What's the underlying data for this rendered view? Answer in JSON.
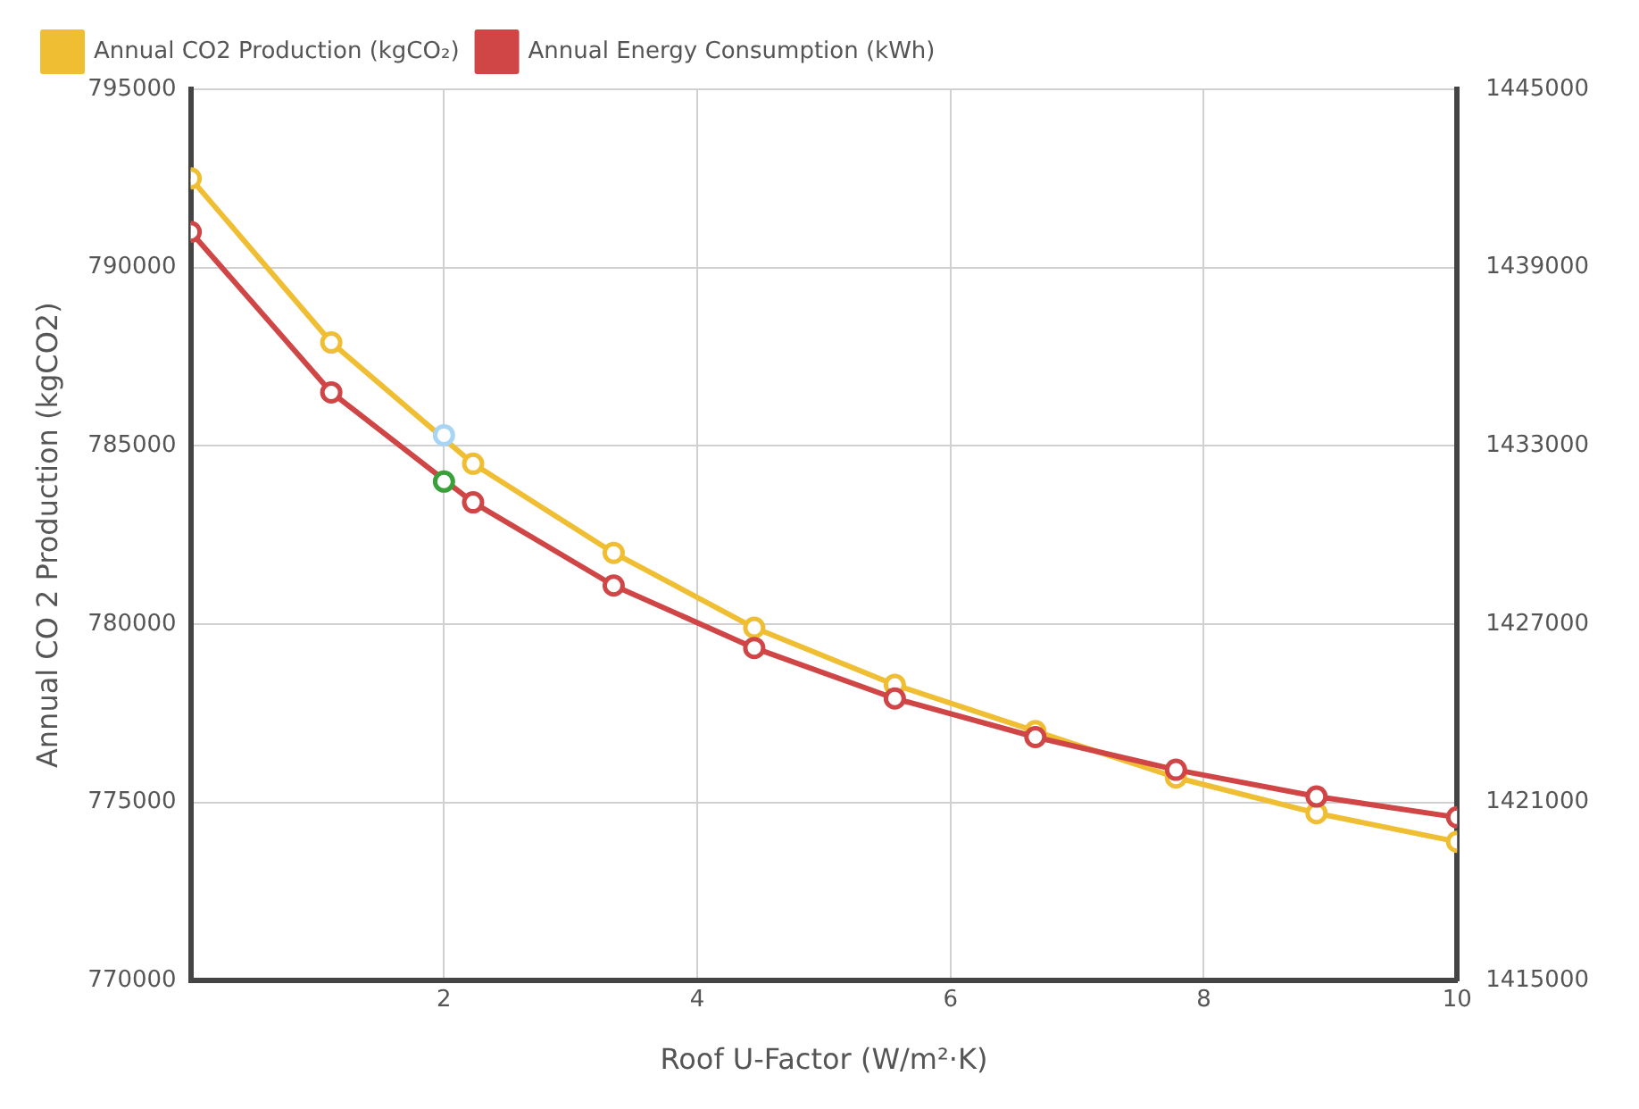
{
  "chart_data": {
    "type": "line",
    "xlabel": "Roof U-Factor (W/m²·K)",
    "ylabel": "Annual CO 2 Production (kgCO2)",
    "x": [
      0,
      1.11,
      2.23,
      3.34,
      4.45,
      5.56,
      6.67,
      7.78,
      8.89,
      10
    ],
    "series": [
      {
        "name": "Annual CO2 Production (kgCO₂)",
        "color": "#f0be32",
        "values": [
          792500,
          787900,
          784500,
          782000,
          779900,
          778300,
          777000,
          775700,
          774700,
          773900
        ]
      },
      {
        "name": "Annual Energy Consumption (kWh)",
        "color": "#d04545",
        "axis": "y2",
        "values": [
          1440200,
          1434800,
          1431100,
          1428300,
          1426200,
          1424500,
          1423200,
          1422100,
          1421200,
          1420500
        ]
      },
      {
        "type": "scatter",
        "color": "#a8d4f5",
        "x": [
          2
        ],
        "values": [
          785300
        ]
      },
      {
        "type": "scatter",
        "color": "#3aa03a",
        "axis": "y2",
        "x": [
          2
        ],
        "values": [
          1431800
        ]
      }
    ],
    "xlim": [
      0,
      10
    ],
    "xticks": [
      2,
      4,
      6,
      8,
      10
    ],
    "ylim": [
      770000,
      795000
    ],
    "yticks": [
      770000,
      775000,
      780000,
      785000,
      790000,
      795000
    ],
    "y2lim": [
      1415000,
      1445000
    ],
    "y2ticks": [
      1415000,
      1421000,
      1427000,
      1433000,
      1439000,
      1445000
    ],
    "grid": true,
    "legend": "top left",
    "marker": "circle",
    "line_style": "solid"
  }
}
